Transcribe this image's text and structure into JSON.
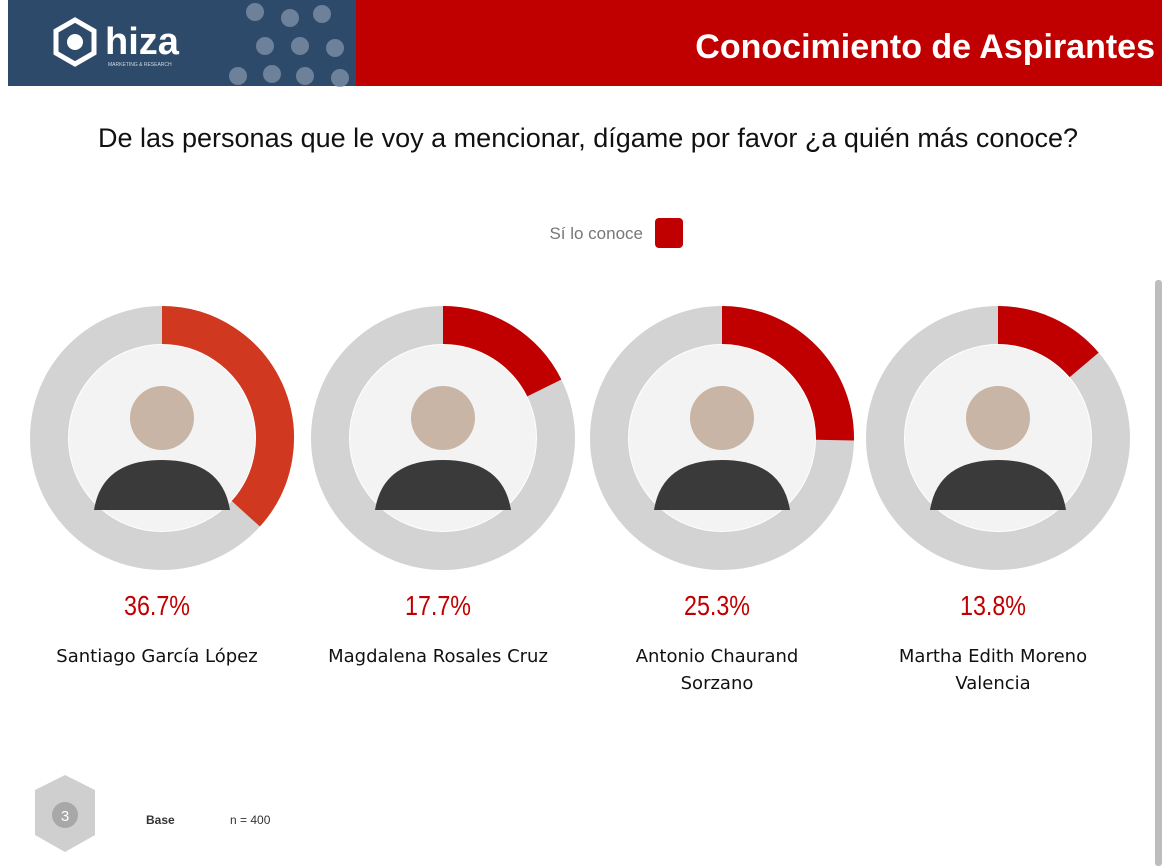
{
  "header": {
    "brand": "hiza",
    "tagline": "MARKETING & RESEARCH",
    "title": "Conocimiento de Aspirantes"
  },
  "question": "De las personas que le voy a mencionar, dígame por favor ¿a quién más conoce?",
  "legend": {
    "label": "Sí lo conoce",
    "color": "#c00000"
  },
  "chart_data": [
    {
      "type": "donut",
      "title": "Santiago García López",
      "values": [
        36.7
      ],
      "value_labels": [
        "36.7%"
      ],
      "color": "#d0381f",
      "track_color": "#d3d3d3"
    },
    {
      "type": "donut",
      "title": "Magdalena Rosales Cruz",
      "values": [
        17.7
      ],
      "value_labels": [
        "17.7%"
      ],
      "color": "#c00000",
      "track_color": "#d3d3d3"
    },
    {
      "type": "donut",
      "title": "Antonio Chaurand Sorzano",
      "values": [
        25.3
      ],
      "value_labels": [
        "25.3%"
      ],
      "color": "#c00000",
      "track_color": "#d3d3d3"
    },
    {
      "type": "donut",
      "title": "Martha Edith Moreno Valencia",
      "values": [
        13.8
      ],
      "value_labels": [
        "13.8%"
      ],
      "color": "#c00000",
      "track_color": "#d3d3d3"
    }
  ],
  "footer": {
    "page": "3",
    "base_label": "Base",
    "base_value": "n = 400"
  }
}
